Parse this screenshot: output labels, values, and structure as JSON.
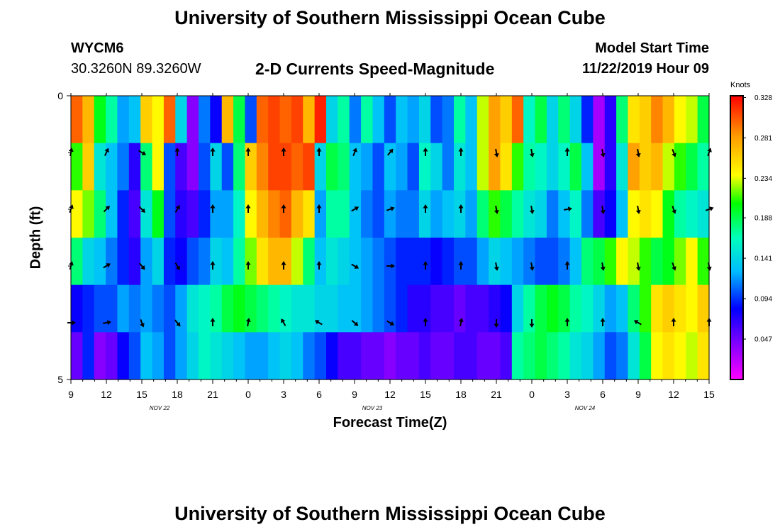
{
  "header": {
    "title": "University of Southern Mississippi Ocean Cube",
    "station_id": "WYCM6",
    "coords": "30.3260N 89.3260W",
    "chart_title": "2-D Currents Speed-Magnitude",
    "start_label": "Model Start Time",
    "start_value": "11/22/2019 Hour 09"
  },
  "footer": {
    "title": "University of Southern Mississippi Ocean Cube"
  },
  "chart_data": {
    "type": "heatmap",
    "title": "2-D Currents Speed-Magnitude",
    "xlabel": "Forecast Time(Z)",
    "ylabel": "Depth (ft)",
    "x_ticks": [
      "9",
      "12",
      "15",
      "18",
      "21",
      "0",
      "3",
      "6",
      "9",
      "12",
      "15",
      "18",
      "21",
      "0",
      "3",
      "6",
      "9",
      "12",
      "15"
    ],
    "date_labels": [
      {
        "label": "NOV  22",
        "after_tick": 2
      },
      {
        "label": "NOV  23",
        "after_tick": 8
      },
      {
        "label": "NOV  24",
        "after_tick": 14
      }
    ],
    "y_ticks": [
      "0",
      "5"
    ],
    "ylim": [
      0,
      5
    ],
    "hours": 54,
    "layers": 5,
    "colorbar": {
      "units": "Knots",
      "labels": [
        "0.328",
        "0.281",
        "0.234",
        "0.188",
        "0.141",
        "0.094",
        "0.047"
      ],
      "range": [
        0.0,
        0.33
      ],
      "colors": [
        "#ff00ff",
        "#8800ff",
        "#0000ff",
        "#00bbff",
        "#00ffbb",
        "#00ff00",
        "#ffff00",
        "#ff9900",
        "#ff0000"
      ]
    },
    "speed_grid": [
      [
        0.3,
        0.27,
        0.2,
        0.17,
        0.12,
        0.13,
        0.26,
        0.24,
        0.3,
        0.14,
        0.04,
        0.11,
        0.08,
        0.27,
        0.19,
        0.1,
        0.3,
        0.31,
        0.3,
        0.31,
        0.27,
        0.32,
        0.14,
        0.17,
        0.11,
        0.17,
        0.13,
        0.1,
        0.13,
        0.12,
        0.14,
        0.1,
        0.11,
        0.17,
        0.13,
        0.23,
        0.28,
        0.26,
        0.3,
        0.16,
        0.19,
        0.14,
        0.18,
        0.14,
        0.09,
        0.03,
        0.07,
        0.18,
        0.25,
        0.26,
        0.29,
        0.27,
        0.24,
        0.23,
        0.19
      ],
      [
        0.21,
        0.26,
        0.15,
        0.13,
        0.11,
        0.07,
        0.18,
        0.24,
        0.1,
        0.06,
        0.04,
        0.1,
        0.14,
        0.1,
        0.18,
        0.26,
        0.29,
        0.31,
        0.31,
        0.3,
        0.31,
        0.14,
        0.19,
        0.18,
        0.13,
        0.12,
        0.1,
        0.13,
        0.12,
        0.1,
        0.16,
        0.14,
        0.11,
        0.15,
        0.13,
        0.23,
        0.28,
        0.25,
        0.21,
        0.17,
        0.16,
        0.14,
        0.16,
        0.19,
        0.13,
        0.03,
        0.07,
        0.15,
        0.28,
        0.26,
        0.27,
        0.23,
        0.21,
        0.19,
        0.17
      ],
      [
        0.24,
        0.22,
        0.18,
        0.13,
        0.09,
        0.06,
        0.15,
        0.2,
        0.1,
        0.07,
        0.06,
        0.09,
        0.12,
        0.12,
        0.16,
        0.24,
        0.27,
        0.29,
        0.3,
        0.27,
        0.25,
        0.12,
        0.17,
        0.17,
        0.13,
        0.11,
        0.1,
        0.12,
        0.11,
        0.11,
        0.14,
        0.12,
        0.13,
        0.14,
        0.12,
        0.18,
        0.21,
        0.19,
        0.17,
        0.15,
        0.14,
        0.11,
        0.13,
        0.16,
        0.11,
        0.06,
        0.08,
        0.13,
        0.24,
        0.25,
        0.24,
        0.2,
        0.17,
        0.16,
        0.15
      ],
      [
        0.18,
        0.14,
        0.13,
        0.11,
        0.09,
        0.07,
        0.12,
        0.14,
        0.09,
        0.08,
        0.1,
        0.11,
        0.14,
        0.13,
        0.17,
        0.22,
        0.25,
        0.27,
        0.27,
        0.23,
        0.18,
        0.13,
        0.15,
        0.14,
        0.13,
        0.12,
        0.11,
        0.1,
        0.09,
        0.09,
        0.09,
        0.08,
        0.09,
        0.1,
        0.1,
        0.12,
        0.14,
        0.13,
        0.12,
        0.11,
        0.1,
        0.1,
        0.11,
        0.13,
        0.18,
        0.19,
        0.21,
        0.24,
        0.23,
        0.21,
        0.19,
        0.2,
        0.22,
        0.24,
        0.21
      ],
      [
        0.08,
        0.09,
        0.1,
        0.1,
        0.12,
        0.11,
        0.12,
        0.11,
        0.1,
        0.12,
        0.15,
        0.16,
        0.17,
        0.19,
        0.2,
        0.19,
        0.18,
        0.17,
        0.16,
        0.15,
        0.15,
        0.14,
        0.14,
        0.13,
        0.13,
        0.12,
        0.11,
        0.1,
        0.09,
        0.07,
        0.07,
        0.06,
        0.06,
        0.05,
        0.06,
        0.06,
        0.07,
        0.08,
        0.14,
        0.17,
        0.19,
        0.2,
        0.19,
        0.17,
        0.16,
        0.14,
        0.12,
        0.13,
        0.18,
        0.21,
        0.25,
        0.26,
        0.25,
        0.24,
        0.26
      ],
      [
        0.05,
        0.09,
        0.04,
        0.05,
        0.08,
        0.1,
        0.13,
        0.12,
        0.1,
        0.12,
        0.14,
        0.16,
        0.15,
        0.14,
        0.13,
        0.12,
        0.12,
        0.13,
        0.14,
        0.13,
        0.11,
        0.1,
        0.08,
        0.06,
        0.06,
        0.05,
        0.05,
        0.04,
        0.05,
        0.05,
        0.06,
        0.05,
        0.05,
        0.06,
        0.06,
        0.05,
        0.05,
        0.06,
        0.17,
        0.18,
        0.19,
        0.18,
        0.17,
        0.15,
        0.14,
        0.12,
        0.1,
        0.11,
        0.15,
        0.19,
        0.24,
        0.25,
        0.24,
        0.23,
        0.25
      ]
    ],
    "arrow_columns": [
      0,
      3,
      6,
      9,
      12,
      15,
      18,
      21,
      24,
      27,
      30,
      33,
      36,
      39,
      42,
      45,
      48,
      51,
      54
    ],
    "arrow_rows": [
      1,
      2,
      3,
      4
    ],
    "direction_deg": {
      "0": [
        10,
        20,
        15,
        90
      ],
      "3": [
        25,
        45,
        60,
        80
      ],
      "6": [
        120,
        135,
        140,
        160
      ],
      "9": [
        0,
        30,
        150,
        140
      ],
      "12": [
        0,
        0,
        0,
        0
      ],
      "15": [
        0,
        0,
        0,
        10
      ],
      "18": [
        0,
        0,
        0,
        330
      ],
      "21": [
        0,
        0,
        0,
        300
      ],
      "24": [
        20,
        60,
        120,
        130
      ],
      "27": [
        40,
        70,
        90,
        120
      ],
      "30": [
        0,
        0,
        0,
        0
      ],
      "33": [
        0,
        0,
        0,
        10
      ],
      "36": [
        170,
        170,
        170,
        180
      ],
      "39": [
        170,
        170,
        170,
        180
      ],
      "42": [
        0,
        80,
        0,
        0
      ],
      "45": [
        170,
        170,
        170,
        0
      ],
      "48": [
        170,
        170,
        170,
        300
      ],
      "51": [
        160,
        160,
        160,
        0
      ],
      "54": [
        20,
        70,
        170,
        0
      ]
    }
  }
}
